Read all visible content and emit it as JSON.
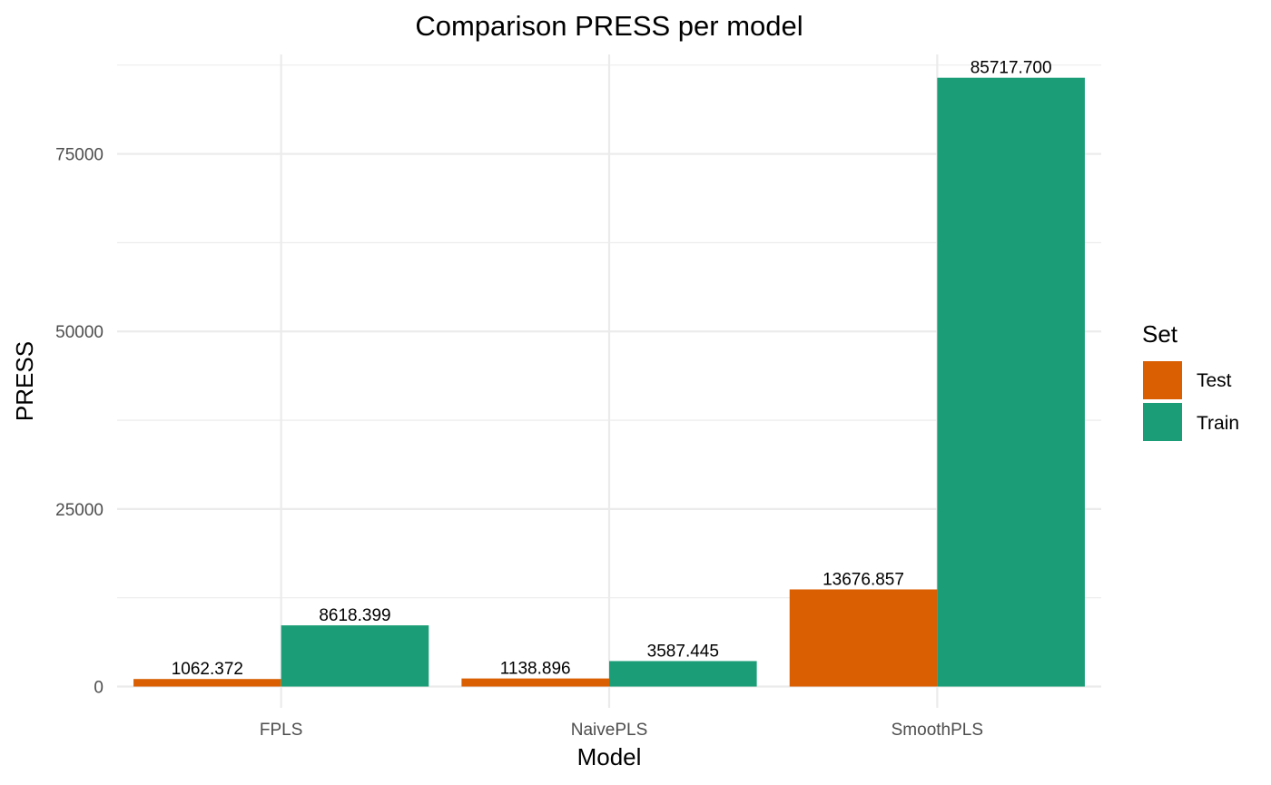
{
  "chart_data": {
    "type": "bar",
    "title": "Comparison PRESS per model",
    "xlabel": "Model",
    "ylabel": "PRESS",
    "categories": [
      "FPLS",
      "NaivePLS",
      "SmoothPLS"
    ],
    "series": [
      {
        "name": "Test",
        "color": "#d95f02",
        "values": [
          1062.372,
          1138.896,
          13676.857
        ],
        "labels": [
          "1062.372",
          "1138.896",
          "13676.857"
        ]
      },
      {
        "name": "Train",
        "color": "#1b9e77",
        "values": [
          8618.399,
          3587.445,
          85717.7
        ],
        "labels": [
          "8618.399",
          "3587.445",
          "85717.700"
        ]
      }
    ],
    "ylim": [
      -3000,
      89000
    ],
    "yticks": [
      0,
      25000,
      50000,
      75000
    ],
    "ytick_labels": [
      "0",
      "25000",
      "50000",
      "75000"
    ],
    "grid": true,
    "legend": {
      "title": "Set",
      "position": "right"
    }
  }
}
